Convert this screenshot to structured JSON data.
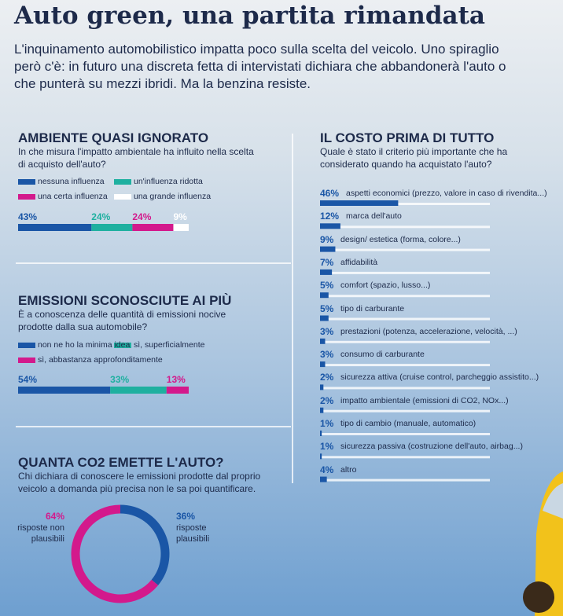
{
  "header": {
    "title": "Auto green, una partita rimandata",
    "subtitle": "L'inquinamento automobilistico impatta poco sulla scelta del veicolo. Uno spiraglio però c'è: in futuro una discreta fetta di intervistati dichiara che abbandonerà l'auto o che punterà su mezzi ibridi. Ma la benzina resiste."
  },
  "chart_data": [
    {
      "type": "stacked_bar",
      "title": "AMBIENTE QUASI IGNORATO",
      "subtitle": "In che misura l'impatto ambientale ha influito nella scelta di acquisto dell'auto?",
      "xlim": [
        0,
        100
      ],
      "series": [
        {
          "name": "nessuna influenza",
          "color": "#1a56a6",
          "values": [
            43
          ],
          "value_labels": [
            "43%"
          ]
        },
        {
          "name": "un'influenza ridotta",
          "color": "#1fb0a0",
          "values": [
            24
          ],
          "value_labels": [
            "24%"
          ]
        },
        {
          "name": "una certa influenza",
          "color": "#d3198c",
          "values": [
            24
          ],
          "value_labels": [
            "24%"
          ]
        },
        {
          "name": "una grande influenza",
          "color": "#ffffff",
          "values": [
            9
          ],
          "value_labels": [
            "9%"
          ]
        }
      ]
    },
    {
      "type": "stacked_bar",
      "title": "EMISSIONI SCONOSCIUTE AI PIÙ",
      "subtitle": "È a conoscenza delle quantità di emissioni nocive prodotte dalla sua automobile?",
      "xlim": [
        0,
        100
      ],
      "series": [
        {
          "name": "non ne ho la minima idea",
          "color": "#1a56a6",
          "values": [
            54
          ],
          "value_labels": [
            "54%"
          ]
        },
        {
          "name": "sì, superficialmente",
          "color": "#1fb0a0",
          "values": [
            33
          ],
          "value_labels": [
            "33%"
          ]
        },
        {
          "name": "sì, abbastanza approfonditamente",
          "color": "#d3198c",
          "values": [
            13
          ],
          "value_labels": [
            "13%"
          ]
        }
      ]
    },
    {
      "type": "donut",
      "title": "QUANTA CO2 EMETTE L'AUTO?",
      "subtitle": "Chi dichiara di conoscere le emissioni prodotte dal proprio veicolo a domanda più precisa non le sa poi quantificare.",
      "categories": [
        "risposte non plausibili",
        "risposte plausibili"
      ],
      "values": [
        64,
        36
      ],
      "value_labels": [
        "64%",
        "36%"
      ],
      "colors": [
        "#d3198c",
        "#1a56a6"
      ]
    },
    {
      "type": "hbar",
      "title": "IL COSTO PRIMA DI TUTTO",
      "subtitle": "Quale è stato il criterio più importante che ha considerato quando ha acquistato l'auto?",
      "xlim": [
        0,
        100
      ],
      "color": "#1a56a6",
      "categories": [
        "aspetti economici (prezzo, valore in caso di rivendita...)",
        "marca dell'auto",
        "design/ estetica (forma, colore...)",
        "affidabilità",
        "comfort (spazio, lusso...)",
        "tipo di carburante",
        "prestazioni (potenza, accelerazione, velocità, ...)",
        "consumo di carburante",
        "sicurezza attiva (cruise control, parcheggio assistito...)",
        "impatto ambientale (emissioni di CO2, NOx...)",
        "tipo di cambio (manuale, automatico)",
        "sicurezza passiva (costruzione dell'auto, airbag...)",
        "altro"
      ],
      "values": [
        46,
        12,
        9,
        7,
        5,
        5,
        3,
        3,
        2,
        2,
        1,
        1,
        4
      ],
      "value_labels": [
        "46%",
        "12%",
        "9%",
        "7%",
        "5%",
        "5%",
        "3%",
        "3%",
        "2%",
        "2%",
        "1%",
        "1%",
        "4%"
      ]
    }
  ]
}
